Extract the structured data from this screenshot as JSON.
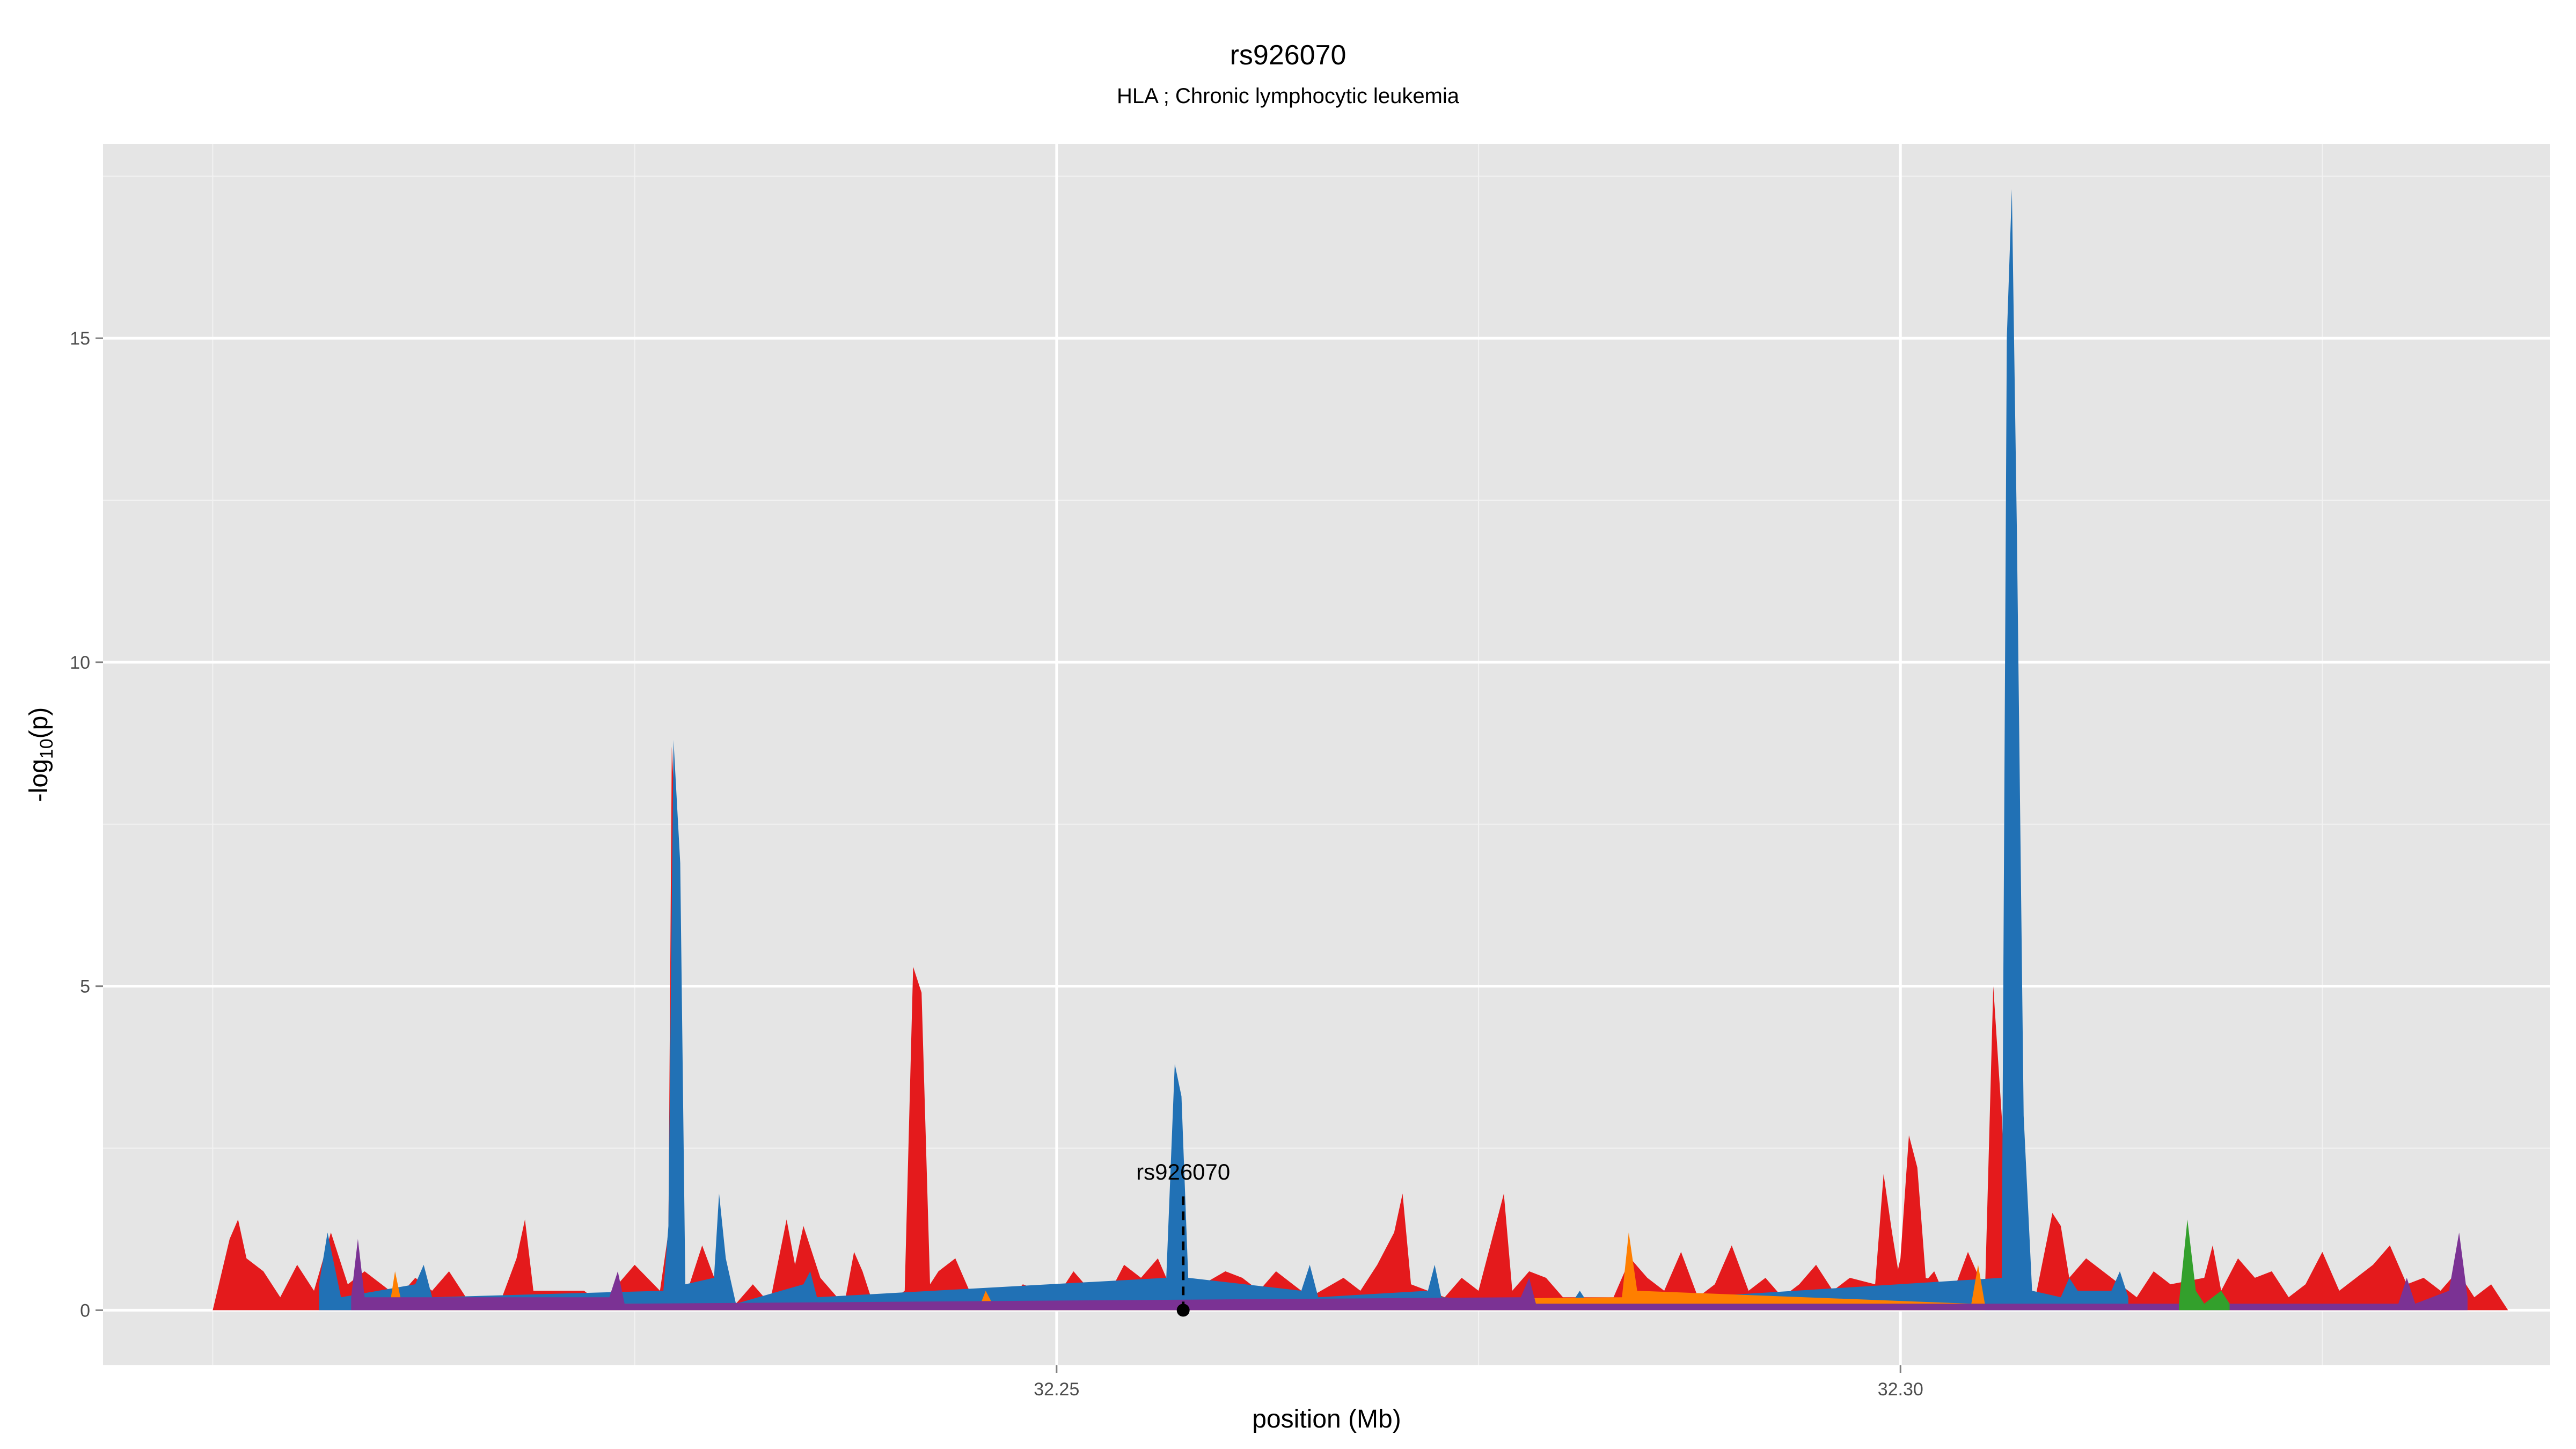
{
  "chart_data": {
    "type": "area",
    "title": "rs926070",
    "subtitle": "HLA ; Chronic lymphocytic leukemia",
    "xlabel": "position (Mb)",
    "ylabel_main": "-log",
    "ylabel_sub": "10",
    "ylabel_tail": "(p)",
    "xlim": [
      32.1935,
      32.3385
    ],
    "ylim": [
      -0.85,
      18.0
    ],
    "x_ticks": [
      32.25,
      32.3
    ],
    "x_tick_labels": [
      "32.25",
      "32.30"
    ],
    "y_ticks": [
      0,
      5,
      10,
      15
    ],
    "y_tick_labels": [
      "0",
      "5",
      "10",
      "15"
    ],
    "grid": true,
    "series_colors": {
      "red": "#e41a1c",
      "blue": "#2171b5",
      "orange": "#ff7f00",
      "purple": "#7b3294",
      "green": "#33a02c"
    },
    "highlight": {
      "label": "rs926070",
      "x": 32.2575,
      "y": 0
    },
    "series": [
      {
        "color": "red",
        "values": [
          [
            32.2,
            0
          ],
          [
            32.201,
            1.1
          ],
          [
            32.2015,
            1.4
          ],
          [
            32.202,
            0.8
          ],
          [
            32.203,
            0.6
          ],
          [
            32.204,
            0.2
          ],
          [
            32.205,
            0.7
          ],
          [
            32.2055,
            0.5
          ],
          [
            32.206,
            0.3
          ],
          [
            32.207,
            1.2
          ],
          [
            32.208,
            0.4
          ],
          [
            32.209,
            0.6
          ],
          [
            32.211,
            0.2
          ],
          [
            32.212,
            0.5
          ],
          [
            32.213,
            0.3
          ],
          [
            32.214,
            0.6
          ],
          [
            32.215,
            0.2
          ],
          [
            32.216,
            0.2
          ],
          [
            32.217,
            0.1
          ],
          [
            32.218,
            0.8
          ],
          [
            32.2185,
            1.4
          ],
          [
            32.219,
            0.3
          ],
          [
            32.222,
            0.3
          ],
          [
            32.223,
            0.1
          ],
          [
            32.224,
            0.4
          ],
          [
            32.225,
            0.7
          ],
          [
            32.2265,
            0.3
          ],
          [
            32.227,
            1.2
          ],
          [
            32.2272,
            8.7
          ],
          [
            32.2275,
            7.0
          ],
          [
            32.228,
            0.2
          ],
          [
            32.229,
            1.0
          ],
          [
            32.23,
            0.3
          ],
          [
            32.231,
            0.1
          ],
          [
            32.232,
            0.4
          ],
          [
            32.233,
            0.1
          ],
          [
            32.234,
            1.4
          ],
          [
            32.2345,
            0.7
          ],
          [
            32.235,
            1.3
          ],
          [
            32.236,
            0.5
          ],
          [
            32.237,
            0.2
          ],
          [
            32.2375,
            0.2
          ],
          [
            32.238,
            0.9
          ],
          [
            32.2385,
            0.6
          ],
          [
            32.239,
            0.2
          ],
          [
            32.24,
            0.1
          ],
          [
            32.241,
            0.3
          ],
          [
            32.2415,
            5.3
          ],
          [
            32.242,
            4.9
          ],
          [
            32.2425,
            0.4
          ],
          [
            32.243,
            0.6
          ],
          [
            32.244,
            0.8
          ],
          [
            32.245,
            0.2
          ],
          [
            32.247,
            0.1
          ],
          [
            32.248,
            0.4
          ],
          [
            32.249,
            0.3
          ],
          [
            32.25,
            0.2
          ],
          [
            32.251,
            0.6
          ],
          [
            32.252,
            0.3
          ],
          [
            32.253,
            0.2
          ],
          [
            32.254,
            0.7
          ],
          [
            32.255,
            0.5
          ],
          [
            32.256,
            0.8
          ],
          [
            32.257,
            0.2
          ],
          [
            32.258,
            0.3
          ],
          [
            32.26,
            0.6
          ],
          [
            32.261,
            0.5
          ],
          [
            32.262,
            0.3
          ],
          [
            32.263,
            0.6
          ],
          [
            32.264,
            0.4
          ],
          [
            32.265,
            0.2
          ],
          [
            32.267,
            0.5
          ],
          [
            32.268,
            0.3
          ],
          [
            32.269,
            0.7
          ],
          [
            32.27,
            1.2
          ],
          [
            32.2705,
            1.8
          ],
          [
            32.271,
            0.4
          ],
          [
            32.272,
            0.3
          ],
          [
            32.273,
            0.2
          ],
          [
            32.274,
            0.5
          ],
          [
            32.275,
            0.3
          ],
          [
            32.276,
            1.3
          ],
          [
            32.2765,
            1.8
          ],
          [
            32.277,
            0.3
          ],
          [
            32.278,
            0.6
          ],
          [
            32.279,
            0.5
          ],
          [
            32.28,
            0.2
          ],
          [
            32.283,
            0.2
          ],
          [
            32.284,
            0.8
          ],
          [
            32.285,
            0.5
          ],
          [
            32.286,
            0.3
          ],
          [
            32.287,
            0.9
          ],
          [
            32.288,
            0.2
          ],
          [
            32.289,
            0.4
          ],
          [
            32.29,
            1.0
          ],
          [
            32.291,
            0.3
          ],
          [
            32.292,
            0.5
          ],
          [
            32.293,
            0.2
          ],
          [
            32.294,
            0.4
          ],
          [
            32.295,
            0.7
          ],
          [
            32.296,
            0.3
          ],
          [
            32.297,
            0.5
          ],
          [
            32.2985,
            0.4
          ],
          [
            32.299,
            2.1
          ],
          [
            32.2995,
            1.2
          ],
          [
            32.3,
            0.4
          ],
          [
            32.301,
            0.3
          ],
          [
            32.302,
            0.6
          ],
          [
            32.3025,
            0.3
          ],
          [
            32.303,
            0.2
          ],
          [
            32.304,
            0.9
          ],
          [
            32.305,
            0.3
          ],
          [
            32.3055,
            0.2
          ],
          [
            32.306,
            0.4
          ],
          [
            32.307,
            0.3
          ],
          [
            32.308,
            0.2
          ],
          [
            32.309,
            1.5
          ],
          [
            32.3095,
            1.3
          ],
          [
            32.31,
            0.5
          ],
          [
            32.311,
            0.8
          ],
          [
            32.312,
            0.6
          ],
          [
            32.313,
            0.4
          ],
          [
            32.314,
            0.2
          ],
          [
            32.315,
            0.6
          ],
          [
            32.316,
            0.4
          ],
          [
            32.318,
            0.5
          ],
          [
            32.3185,
            1.0
          ],
          [
            32.319,
            0.3
          ],
          [
            32.32,
            0.8
          ],
          [
            32.321,
            0.5
          ],
          [
            32.322,
            0.6
          ],
          [
            32.323,
            0.2
          ],
          [
            32.324,
            0.4
          ],
          [
            32.325,
            0.9
          ],
          [
            32.326,
            0.3
          ],
          [
            32.327,
            0.5
          ],
          [
            32.328,
            0.7
          ],
          [
            32.329,
            1.0
          ],
          [
            32.33,
            0.4
          ],
          [
            32.331,
            0.5
          ],
          [
            32.332,
            0.3
          ],
          [
            32.333,
            0.6
          ],
          [
            32.334,
            0.2
          ],
          [
            32.335,
            0.4
          ],
          [
            32.336,
            0
          ]
        ]
      },
      {
        "color": "red_tall",
        "values": [
          [
            32.2995,
            0.2
          ],
          [
            32.3,
            0.8
          ],
          [
            32.3005,
            2.7
          ],
          [
            32.301,
            2.2
          ],
          [
            32.3015,
            0.5
          ],
          [
            32.305,
            0.2
          ],
          [
            32.3055,
            5.0
          ],
          [
            32.306,
            3.0
          ],
          [
            32.3065,
            0.2
          ]
        ]
      },
      {
        "color": "blue",
        "values": [
          [
            32.2063,
            0.4
          ],
          [
            32.2068,
            1.2
          ],
          [
            32.2072,
            0.7
          ],
          [
            32.2076,
            0.2
          ],
          [
            32.212,
            0.4
          ],
          [
            32.2125,
            0.7
          ],
          [
            32.213,
            0.2
          ],
          [
            32.2267,
            0.3
          ],
          [
            32.227,
            1.3
          ],
          [
            32.2273,
            8.8
          ],
          [
            32.2277,
            6.9
          ],
          [
            32.228,
            0.4
          ],
          [
            32.2297,
            0.5
          ],
          [
            32.23,
            1.8
          ],
          [
            32.2304,
            0.8
          ],
          [
            32.231,
            0.1
          ],
          [
            32.235,
            0.4
          ],
          [
            32.2354,
            0.6
          ],
          [
            32.2358,
            0.2
          ],
          [
            32.2565,
            0.5
          ],
          [
            32.257,
            3.8
          ],
          [
            32.2574,
            3.3
          ],
          [
            32.2578,
            0.5
          ],
          [
            32.2645,
            0.3
          ],
          [
            32.265,
            0.7
          ],
          [
            32.2655,
            0.2
          ],
          [
            32.272,
            0.3
          ],
          [
            32.2724,
            0.7
          ],
          [
            32.2728,
            0.2
          ],
          [
            32.2805,
            0.1
          ],
          [
            32.281,
            0.3
          ],
          [
            32.2815,
            0.1
          ],
          [
            32.306,
            0.5
          ],
          [
            32.3063,
            15.0
          ],
          [
            32.3066,
            17.3
          ],
          [
            32.3069,
            12.0
          ],
          [
            32.3073,
            3.0
          ],
          [
            32.3078,
            0.3
          ],
          [
            32.3095,
            0.2
          ],
          [
            32.31,
            0.5
          ],
          [
            32.3105,
            0.3
          ],
          [
            32.3125,
            0.3
          ],
          [
            32.313,
            0.6
          ],
          [
            32.3135,
            0.2
          ]
        ]
      },
      {
        "color": "orange",
        "values": [
          [
            32.2105,
            0.1
          ],
          [
            32.2108,
            0.6
          ],
          [
            32.2112,
            0.1
          ],
          [
            32.2455,
            0.1
          ],
          [
            32.2458,
            0.3
          ],
          [
            32.2462,
            0.1
          ],
          [
            32.2835,
            0.2
          ],
          [
            32.2839,
            1.2
          ],
          [
            32.2844,
            0.3
          ],
          [
            32.3042,
            0.1
          ],
          [
            32.3046,
            0.7
          ],
          [
            32.305,
            0.1
          ]
        ]
      },
      {
        "color": "purple",
        "values": [
          [
            32.2082,
            0.2
          ],
          [
            32.2086,
            1.1
          ],
          [
            32.209,
            0.2
          ],
          [
            32.2235,
            0.2
          ],
          [
            32.224,
            0.6
          ],
          [
            32.2244,
            0.1
          ],
          [
            32.2775,
            0.2
          ],
          [
            32.278,
            0.5
          ],
          [
            32.2784,
            0.1
          ],
          [
            32.3295,
            0.1
          ],
          [
            32.33,
            0.5
          ],
          [
            32.3305,
            0.1
          ],
          [
            32.3325,
            0.3
          ],
          [
            32.3331,
            1.2
          ],
          [
            32.3336,
            0.2
          ]
        ]
      },
      {
        "color": "green",
        "values": [
          [
            32.3165,
            0.1
          ],
          [
            32.317,
            1.4
          ],
          [
            32.3175,
            0.3
          ],
          [
            32.318,
            0.1
          ],
          [
            32.319,
            0.3
          ],
          [
            32.3195,
            0.1
          ]
        ]
      }
    ]
  }
}
